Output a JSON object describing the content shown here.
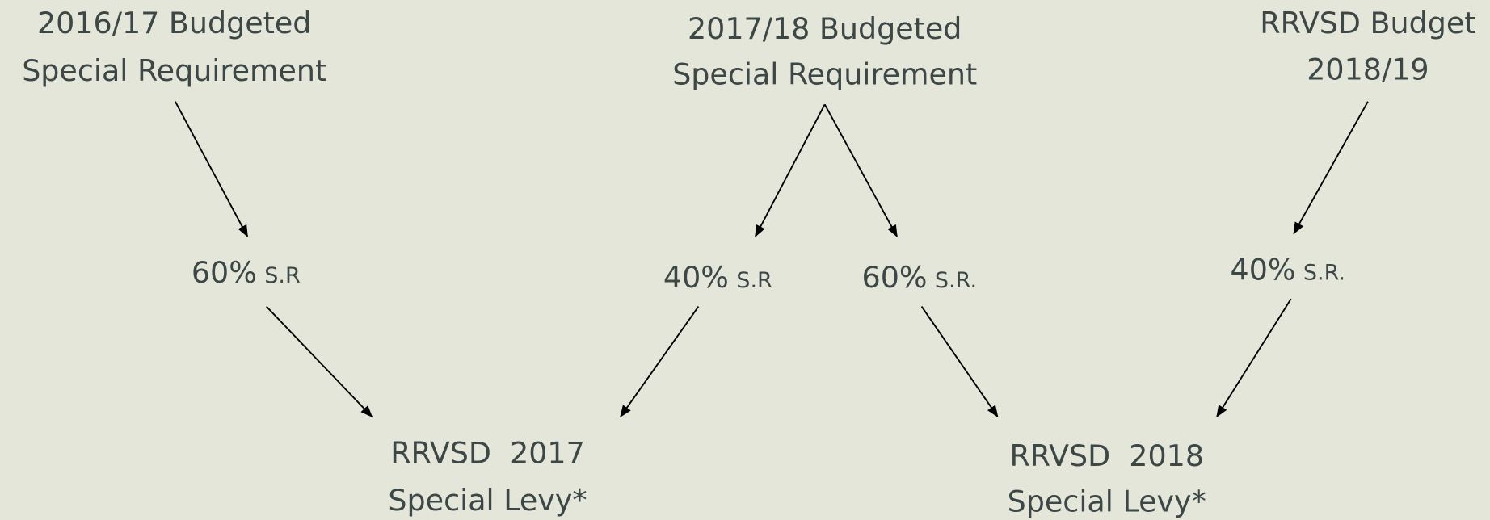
{
  "nodes": [
    {
      "lines": [
        "2016/17 Budgeted",
        "Special Requirement"
      ]
    },
    {
      "lines": [
        "2017/18 Budgeted",
        "Special Requirement"
      ]
    },
    {
      "lines": [
        "RRVSD Budget",
        "2018/19"
      ]
    },
    {
      "pct": "60%",
      "suffix": "S.R"
    },
    {
      "pct": "40%",
      "suffix": "S.R"
    },
    {
      "pct": "60%",
      "suffix": "S.R."
    },
    {
      "pct": "40%",
      "suffix": "S.R."
    },
    {
      "lines": [
        "RRVSD  2017",
        "Special Levy*"
      ]
    },
    {
      "lines": [
        "RRVSD  2018",
        "Special Levy*"
      ]
    }
  ]
}
